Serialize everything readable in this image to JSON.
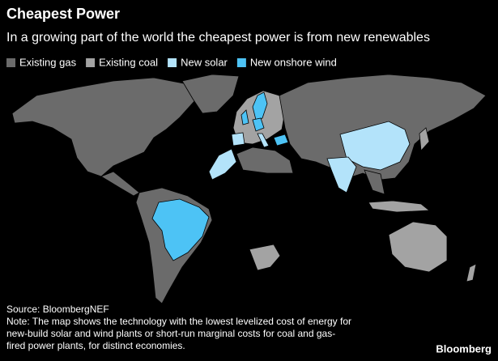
{
  "header": {
    "title": "Cheapest Power",
    "subtitle": "In a growing part of the world the cheapest power is from new renewables"
  },
  "legend": {
    "items": [
      {
        "label": "Existing gas",
        "color": "#6b6b6b"
      },
      {
        "label": "Existing coal",
        "color": "#a3a3a3"
      },
      {
        "label": "New solar",
        "color": "#b3e3fa"
      },
      {
        "label": "New onshore wind",
        "color": "#4dc3f5"
      }
    ]
  },
  "footer": {
    "source": "Source: BloombergNEF",
    "note": [
      "Note: The map shows the technology with the lowest levelized cost of energy for",
      "new-build solar and wind plants or short-run marginal costs for coal and gas-",
      "fired power plants, for distinct economies."
    ],
    "brand": "Bloomberg"
  }
}
